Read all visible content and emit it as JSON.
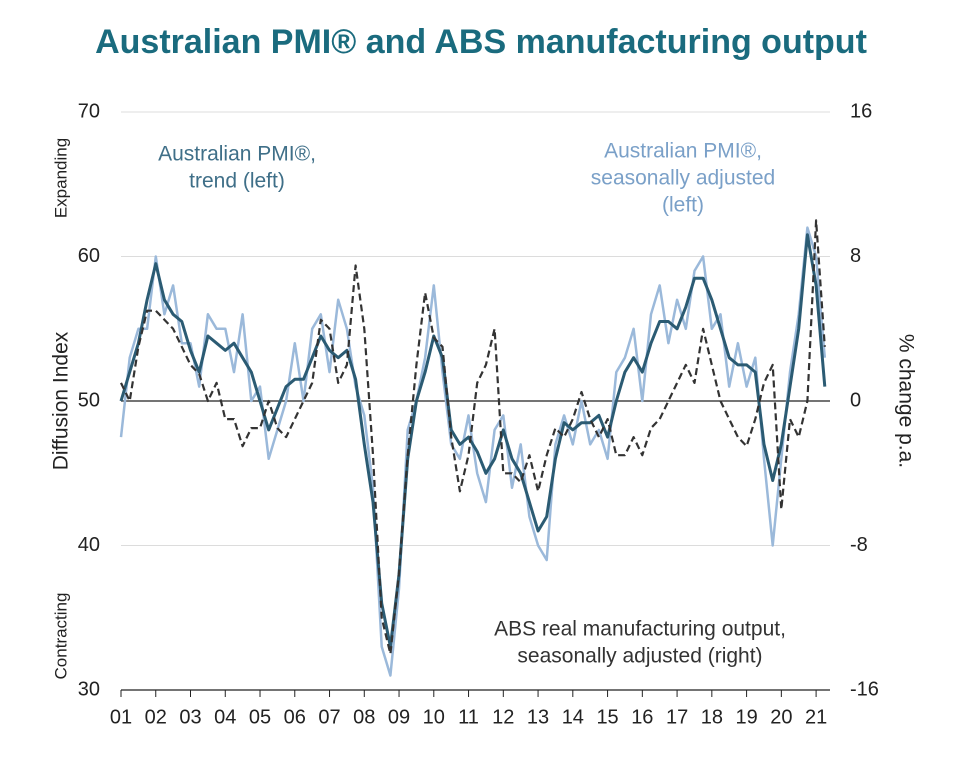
{
  "chart_data": {
    "type": "line",
    "title": "Australian PMI® and ABS manufacturing output",
    "ylabel": "Diffusion Index",
    "y2label": "% change p.a.",
    "ylabel_top": "Expanding",
    "ylabel_bottom": "Contracting",
    "x": [
      1,
      1.25,
      1.5,
      1.75,
      2,
      2.25,
      2.5,
      2.75,
      3,
      3.25,
      3.5,
      3.75,
      4,
      4.25,
      4.5,
      4.75,
      5,
      5.25,
      5.5,
      5.75,
      6,
      6.25,
      6.5,
      6.75,
      7,
      7.25,
      7.5,
      7.75,
      8,
      8.25,
      8.5,
      8.75,
      9,
      9.25,
      9.5,
      9.75,
      10,
      10.25,
      10.5,
      10.75,
      11,
      11.25,
      11.5,
      11.75,
      12,
      12.25,
      12.5,
      12.75,
      13,
      13.25,
      13.5,
      13.75,
      14,
      14.25,
      14.5,
      14.75,
      15,
      15.25,
      15.5,
      15.75,
      16,
      16.25,
      16.5,
      16.75,
      17,
      17.25,
      17.5,
      17.75,
      18,
      18.25,
      18.5,
      18.75,
      19,
      19.25,
      19.5,
      19.75,
      20,
      20.25,
      20.5,
      20.75,
      21,
      21.25
    ],
    "xlim": [
      1,
      21.4
    ],
    "xticks": [
      {
        "value": 1,
        "label": "01"
      },
      {
        "value": 2,
        "label": "02"
      },
      {
        "value": 3,
        "label": "03"
      },
      {
        "value": 4,
        "label": "04"
      },
      {
        "value": 5,
        "label": "05"
      },
      {
        "value": 6,
        "label": "06"
      },
      {
        "value": 7,
        "label": "07"
      },
      {
        "value": 8,
        "label": "08"
      },
      {
        "value": 9,
        "label": "09"
      },
      {
        "value": 10,
        "label": "10"
      },
      {
        "value": 11,
        "label": "11"
      },
      {
        "value": 12,
        "label": "12"
      },
      {
        "value": 13,
        "label": "13"
      },
      {
        "value": 14,
        "label": "14"
      },
      {
        "value": 15,
        "label": "15"
      },
      {
        "value": 16,
        "label": "16"
      },
      {
        "value": 17,
        "label": "17"
      },
      {
        "value": 18,
        "label": "18"
      },
      {
        "value": 19,
        "label": "19"
      },
      {
        "value": 20,
        "label": "20"
      },
      {
        "value": 21,
        "label": "21"
      }
    ],
    "ylim": [
      30,
      70
    ],
    "yticks": [
      30,
      40,
      50,
      60,
      70
    ],
    "y2lim": [
      -16,
      16
    ],
    "y2ticks": [
      -16,
      -8,
      0,
      8,
      16
    ],
    "reference_line": 50,
    "grid": true,
    "series": [
      {
        "name": [
          "Australian PMI®,",
          "seasonally adjusted",
          "(left)"
        ],
        "color": "#9bb9da",
        "dash": false,
        "width": 2.5,
        "values": [
          47.5,
          53,
          55,
          55,
          60,
          56,
          58,
          54,
          54,
          51,
          56,
          55,
          55,
          52,
          56,
          50,
          51,
          46,
          48,
          50,
          54,
          50,
          55,
          56,
          52,
          57,
          55,
          51,
          49,
          44,
          33,
          31,
          37,
          48,
          50,
          53,
          58,
          52,
          47,
          46,
          49,
          45,
          43,
          48,
          49,
          44,
          47,
          42,
          40,
          39,
          47,
          49,
          47,
          50,
          47,
          48,
          46,
          52,
          53,
          55,
          50,
          56,
          58,
          54,
          57,
          55,
          59,
          60,
          55,
          56,
          51,
          54,
          51,
          53,
          46,
          40,
          46,
          52,
          56,
          62,
          60,
          53
        ]
      },
      {
        "name": [
          "Australian PMI®,",
          "trend (left)"
        ],
        "color": "#2b5b73",
        "dash": false,
        "width": 3,
        "values": [
          50,
          52,
          54,
          57,
          59.5,
          57,
          56,
          55.5,
          53.5,
          52,
          54.5,
          54,
          53.5,
          54,
          53,
          52,
          50,
          48,
          49.5,
          51,
          51.5,
          51.5,
          53,
          54.5,
          53.5,
          53,
          53.5,
          51.5,
          47,
          43,
          36,
          33,
          38,
          46,
          50,
          52,
          54.5,
          53,
          48,
          47,
          47.5,
          46.5,
          45,
          46,
          48,
          46,
          45,
          43,
          41,
          42,
          46,
          48.5,
          48,
          48.5,
          48.5,
          49,
          47.5,
          50,
          52,
          53,
          52,
          54,
          55.5,
          55.5,
          55,
          56.5,
          58.5,
          58.5,
          57,
          55,
          53,
          52.5,
          52.5,
          52,
          47,
          44.5,
          47,
          51,
          55,
          61.5,
          58,
          51
        ]
      },
      {
        "name": [
          "ABS real manufacturing output,",
          "seasonally adjusted (right)"
        ],
        "color": "#333333",
        "dash": true,
        "width": 2.2,
        "axis": "y2",
        "values": [
          1,
          0,
          3,
          5,
          5,
          4.5,
          4,
          3,
          2,
          1.5,
          0,
          1,
          -1,
          -1,
          -2.5,
          -1.5,
          -1.5,
          0,
          -1.5,
          -2,
          -1,
          0,
          1,
          4.5,
          4,
          1,
          2,
          7.5,
          4,
          -3,
          -12,
          -14,
          -9.5,
          -3,
          2,
          6,
          3.5,
          3,
          -2,
          -5,
          -3,
          1,
          2,
          4,
          -4,
          -4,
          -4.5,
          -3,
          -5,
          -3,
          -1.5,
          -2,
          -1,
          0.5,
          -1,
          -2,
          -1,
          -3,
          -3,
          -2,
          -3,
          -1.5,
          -1,
          0,
          1,
          2,
          1,
          4,
          2,
          0,
          -1,
          -2,
          -2.5,
          -1,
          1,
          2,
          -6,
          -1,
          -2,
          0,
          10,
          3
        ]
      }
    ]
  }
}
